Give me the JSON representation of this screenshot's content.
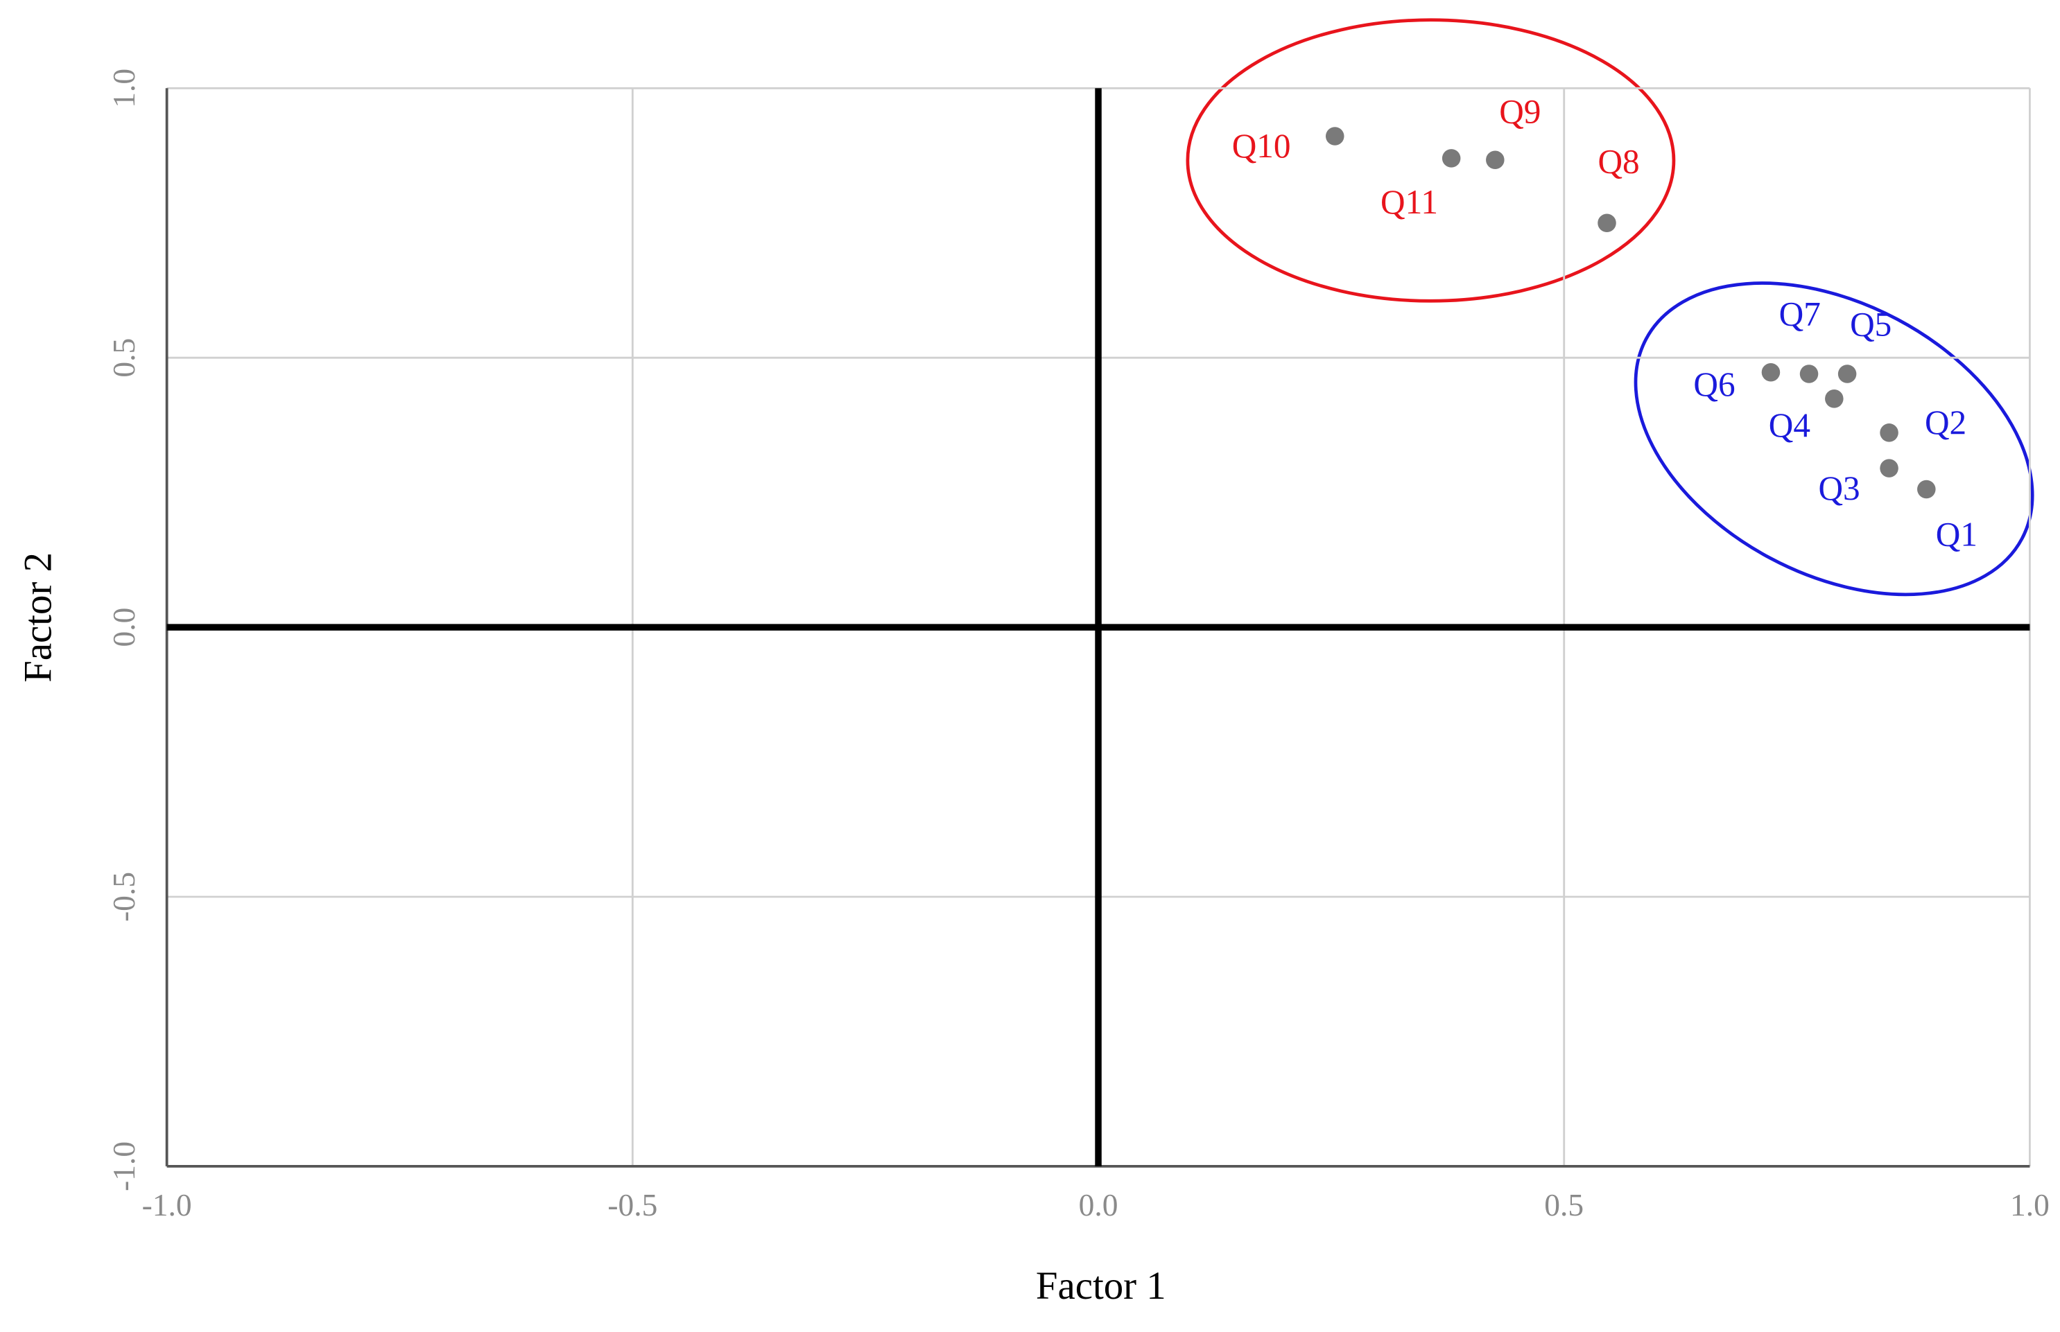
{
  "chart_data": {
    "type": "scatter",
    "x_label": "Factor 1",
    "y_label": "Factor 2",
    "xlim": [
      -1.0,
      1.0
    ],
    "ylim": [
      -1.0,
      1.0
    ],
    "xticks": [
      {
        "value": -1.0,
        "label": "-1.0"
      },
      {
        "value": -0.5,
        "label": "-0.5"
      },
      {
        "value": 0.0,
        "label": "0.0"
      },
      {
        "value": 0.5,
        "label": "0.5"
      },
      {
        "value": 1.0,
        "label": "1.0"
      }
    ],
    "yticks": [
      {
        "value": -1.0,
        "label": "-1.0"
      },
      {
        "value": -0.5,
        "label": "-0.5"
      },
      {
        "value": 0.0,
        "label": "0.0"
      },
      {
        "value": 0.5,
        "label": "0.5"
      },
      {
        "value": 1.0,
        "label": "1.0"
      }
    ],
    "grid": true,
    "series": [
      {
        "color": "#7a7a7a",
        "label_color": "#e8141c",
        "labels": [
          "Q8",
          "Q9",
          "Q10",
          "Q11"
        ],
        "x": [
          0.546,
          0.426,
          0.254,
          0.379
        ],
        "values": [
          0.75,
          0.867,
          0.911,
          0.87
        ]
      },
      {
        "color": "#7a7a7a",
        "label_color": "#1a1adc",
        "labels": [
          "Q1",
          "Q2",
          "Q3",
          "Q4",
          "Q5",
          "Q6",
          "Q7"
        ],
        "x": [
          0.889,
          0.849,
          0.849,
          0.79,
          0.804,
          0.722,
          0.763
        ],
        "values": [
          0.256,
          0.361,
          0.295,
          0.424,
          0.47,
          0.473,
          0.47
        ]
      }
    ]
  }
}
